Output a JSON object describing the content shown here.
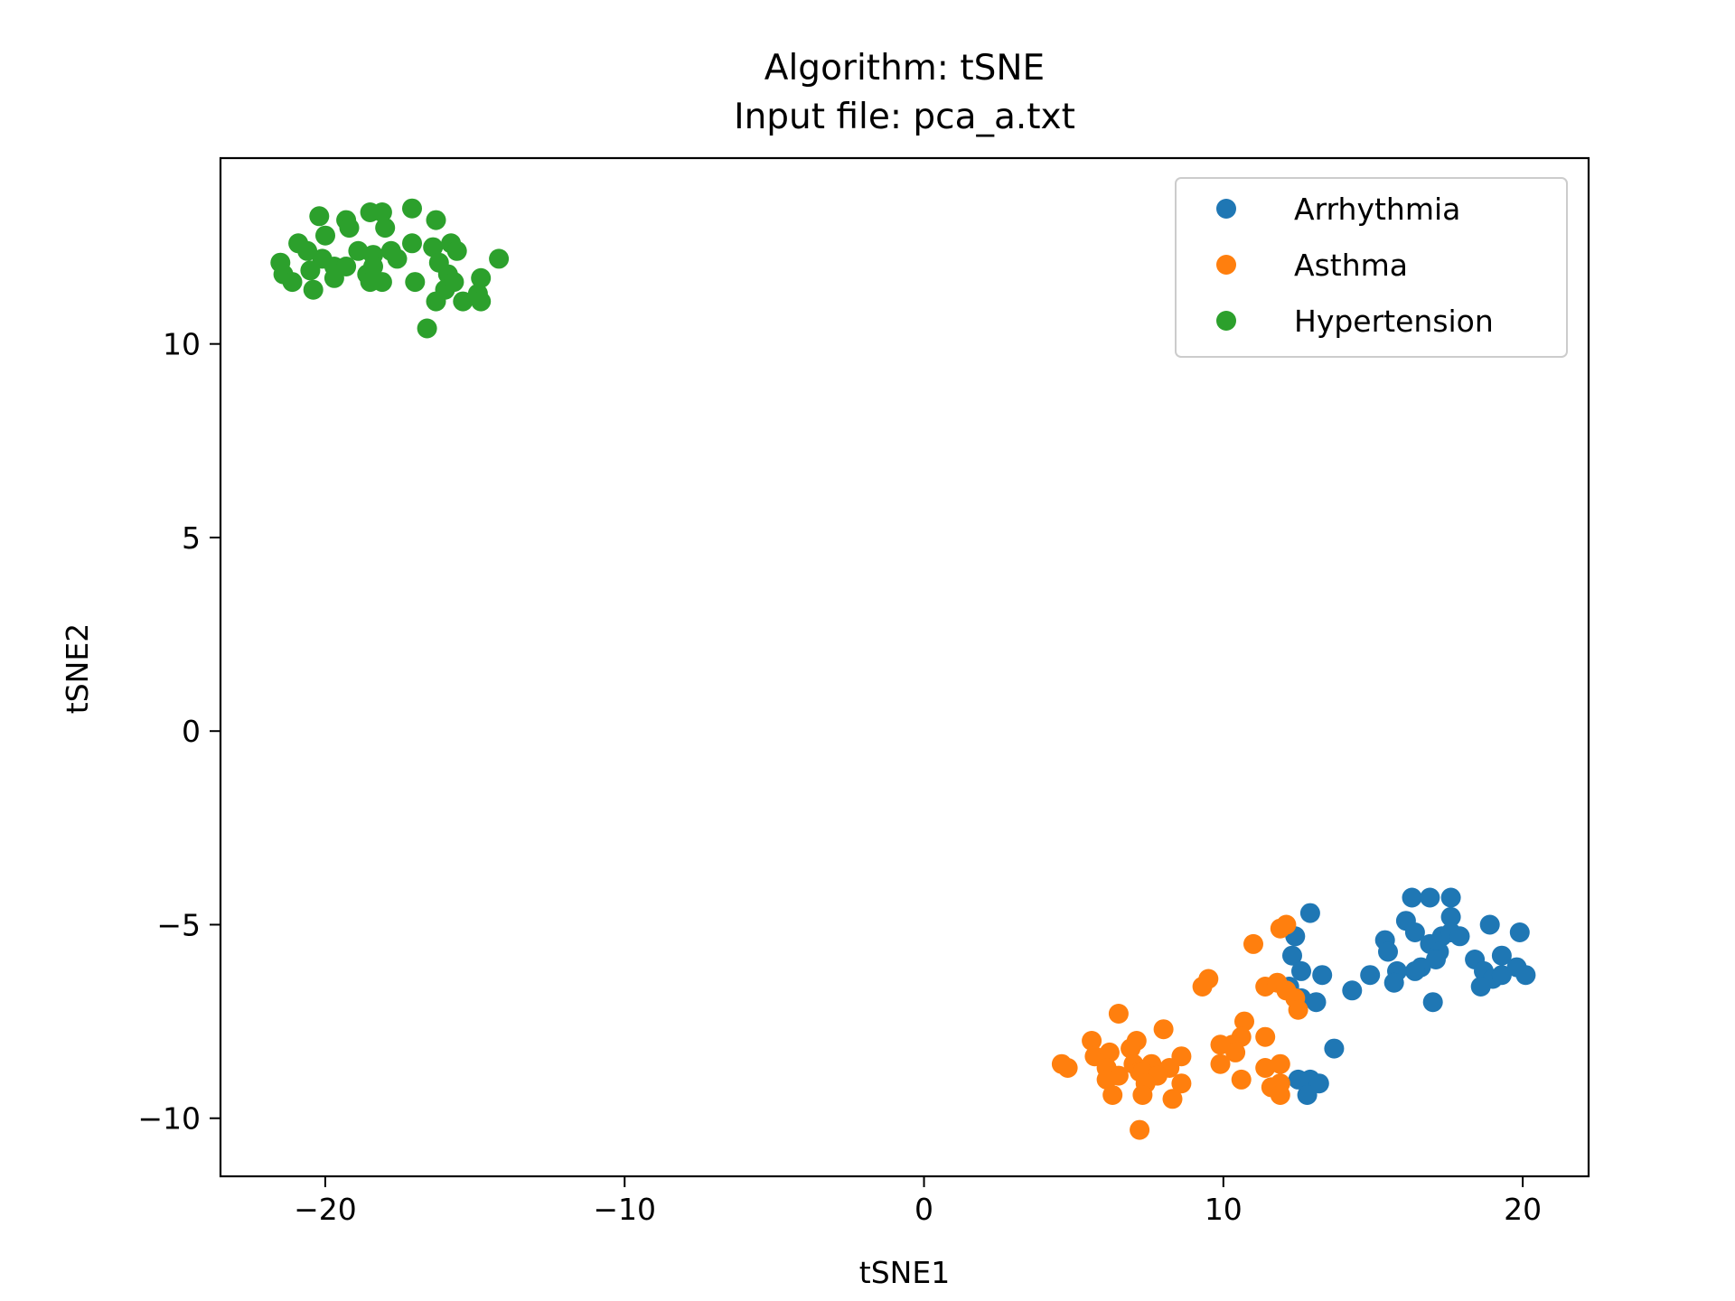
{
  "chart_data": {
    "type": "scatter",
    "title": "Algorithm: tSNE",
    "subtitle": "Input file: pca_a.txt",
    "xlabel": "tSNE1",
    "ylabel": "tSNE2",
    "xlim": [
      -23.5,
      22.2
    ],
    "ylim": [
      -11.5,
      14.8
    ],
    "xticks": [
      {
        "value": -20,
        "label": "−20"
      },
      {
        "value": -10,
        "label": "−10"
      },
      {
        "value": 0,
        "label": "0"
      },
      {
        "value": 10,
        "label": "10"
      },
      {
        "value": 20,
        "label": "20"
      }
    ],
    "yticks": [
      {
        "value": -10,
        "label": "−10"
      },
      {
        "value": -5,
        "label": "−5"
      },
      {
        "value": 0,
        "label": "0"
      },
      {
        "value": 5,
        "label": "5"
      },
      {
        "value": 10,
        "label": "10"
      }
    ],
    "grid": false,
    "legend_position": "top-right",
    "series": [
      {
        "name": "Arrhythmia",
        "color": "#1f77b4",
        "points": [
          [
            12.9,
            -4.7
          ],
          [
            12.4,
            -5.3
          ],
          [
            12.3,
            -5.8
          ],
          [
            12.6,
            -6.2
          ],
          [
            13.3,
            -6.3
          ],
          [
            12.2,
            -6.6
          ],
          [
            12.6,
            -6.9
          ],
          [
            13.1,
            -7.0
          ],
          [
            14.3,
            -6.7
          ],
          [
            14.9,
            -6.3
          ],
          [
            16.3,
            -4.3
          ],
          [
            16.9,
            -4.3
          ],
          [
            17.6,
            -4.3
          ],
          [
            17.6,
            -4.8
          ],
          [
            16.1,
            -4.9
          ],
          [
            16.4,
            -5.2
          ],
          [
            15.4,
            -5.4
          ],
          [
            15.5,
            -5.7
          ],
          [
            16.9,
            -5.5
          ],
          [
            17.3,
            -5.3
          ],
          [
            17.6,
            -5.2
          ],
          [
            17.9,
            -5.3
          ],
          [
            17.2,
            -5.7
          ],
          [
            17.1,
            -5.9
          ],
          [
            16.6,
            -6.1
          ],
          [
            16.4,
            -6.2
          ],
          [
            15.8,
            -6.2
          ],
          [
            15.7,
            -6.5
          ],
          [
            17.0,
            -7.0
          ],
          [
            18.4,
            -5.9
          ],
          [
            18.9,
            -5.0
          ],
          [
            19.3,
            -5.8
          ],
          [
            19.9,
            -5.2
          ],
          [
            18.7,
            -6.2
          ],
          [
            19.0,
            -6.4
          ],
          [
            19.3,
            -6.3
          ],
          [
            19.8,
            -6.1
          ],
          [
            20.1,
            -6.3
          ],
          [
            18.6,
            -6.6
          ],
          [
            13.7,
            -8.2
          ],
          [
            12.5,
            -9.0
          ],
          [
            12.9,
            -9.0
          ],
          [
            13.2,
            -9.1
          ],
          [
            12.8,
            -9.4
          ]
        ]
      },
      {
        "name": "Asthma",
        "color": "#ff7f0e",
        "points": [
          [
            12.1,
            -5.0
          ],
          [
            11.9,
            -5.1
          ],
          [
            11.0,
            -5.5
          ],
          [
            9.5,
            -6.4
          ],
          [
            9.3,
            -6.6
          ],
          [
            11.4,
            -6.6
          ],
          [
            11.8,
            -6.5
          ],
          [
            12.1,
            -6.7
          ],
          [
            12.4,
            -6.9
          ],
          [
            12.5,
            -7.2
          ],
          [
            6.5,
            -7.3
          ],
          [
            10.7,
            -7.5
          ],
          [
            8.0,
            -7.7
          ],
          [
            11.4,
            -7.9
          ],
          [
            5.6,
            -8.0
          ],
          [
            7.1,
            -8.0
          ],
          [
            6.9,
            -8.2
          ],
          [
            10.6,
            -7.9
          ],
          [
            10.3,
            -8.1
          ],
          [
            9.9,
            -8.1
          ],
          [
            5.7,
            -8.4
          ],
          [
            6.2,
            -8.3
          ],
          [
            10.4,
            -8.3
          ],
          [
            8.6,
            -8.4
          ],
          [
            7.0,
            -8.6
          ],
          [
            7.6,
            -8.6
          ],
          [
            6.1,
            -8.7
          ],
          [
            7.2,
            -8.8
          ],
          [
            8.2,
            -8.7
          ],
          [
            4.6,
            -8.6
          ],
          [
            4.8,
            -8.7
          ],
          [
            9.9,
            -8.6
          ],
          [
            11.4,
            -8.7
          ],
          [
            11.9,
            -8.6
          ],
          [
            6.5,
            -8.9
          ],
          [
            7.3,
            -8.8
          ],
          [
            7.8,
            -8.9
          ],
          [
            6.1,
            -9.0
          ],
          [
            7.4,
            -9.1
          ],
          [
            8.6,
            -9.1
          ],
          [
            10.6,
            -9.0
          ],
          [
            11.6,
            -9.2
          ],
          [
            11.9,
            -9.1
          ],
          [
            6.3,
            -9.4
          ],
          [
            7.3,
            -9.4
          ],
          [
            8.3,
            -9.5
          ],
          [
            11.9,
            -9.4
          ],
          [
            7.2,
            -10.3
          ]
        ]
      },
      {
        "name": "Hypertension",
        "color": "#2ca02c",
        "points": [
          [
            -17.1,
            13.5
          ],
          [
            -18.1,
            13.4
          ],
          [
            -18.5,
            13.4
          ],
          [
            -20.2,
            13.3
          ],
          [
            -19.3,
            13.2
          ],
          [
            -16.3,
            13.2
          ],
          [
            -19.2,
            13.0
          ],
          [
            -18.0,
            13.0
          ],
          [
            -20.0,
            12.8
          ],
          [
            -20.9,
            12.6
          ],
          [
            -17.1,
            12.6
          ],
          [
            -16.4,
            12.5
          ],
          [
            -15.8,
            12.6
          ],
          [
            -20.6,
            12.4
          ],
          [
            -18.9,
            12.4
          ],
          [
            -18.4,
            12.3
          ],
          [
            -17.8,
            12.4
          ],
          [
            -15.6,
            12.4
          ],
          [
            -20.1,
            12.2
          ],
          [
            -19.7,
            12.0
          ],
          [
            -18.4,
            12.0
          ],
          [
            -17.6,
            12.2
          ],
          [
            -14.2,
            12.2
          ],
          [
            -21.5,
            12.1
          ],
          [
            -19.3,
            12.0
          ],
          [
            -16.2,
            12.1
          ],
          [
            -15.9,
            11.8
          ],
          [
            -21.4,
            11.8
          ],
          [
            -20.5,
            11.9
          ],
          [
            -18.6,
            11.8
          ],
          [
            -19.7,
            11.7
          ],
          [
            -18.5,
            11.6
          ],
          [
            -18.1,
            11.6
          ],
          [
            -17.0,
            11.6
          ],
          [
            -14.8,
            11.7
          ],
          [
            -21.1,
            11.6
          ],
          [
            -16.0,
            11.4
          ],
          [
            -15.7,
            11.6
          ],
          [
            -20.4,
            11.4
          ],
          [
            -15.4,
            11.1
          ],
          [
            -16.3,
            11.1
          ],
          [
            -14.9,
            11.3
          ],
          [
            -14.8,
            11.1
          ],
          [
            -16.6,
            10.4
          ]
        ]
      }
    ]
  },
  "colors": {
    "axes": "#000000",
    "background": "#ffffff"
  }
}
